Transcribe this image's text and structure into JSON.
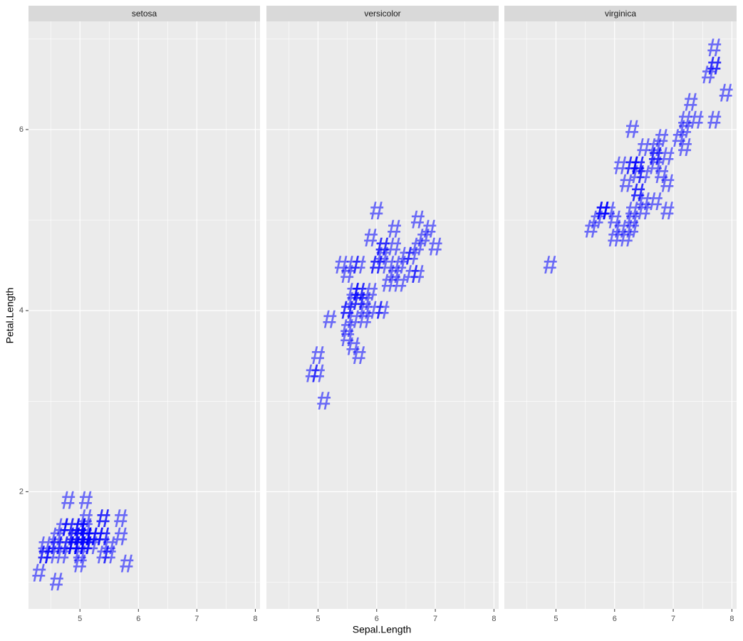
{
  "xlabel": "Sepal.Length",
  "ylabel": "Petal.Length",
  "marker": "#",
  "chart_data": [
    {
      "type": "scatter",
      "title": "setosa",
      "color": "#0000ff",
      "alpha": 0.55,
      "x": [
        5.1,
        4.9,
        4.7,
        4.6,
        5.0,
        5.4,
        4.6,
        5.0,
        4.4,
        4.9,
        5.4,
        4.8,
        4.8,
        4.3,
        5.8,
        5.7,
        5.4,
        5.1,
        5.7,
        5.1,
        5.4,
        5.1,
        4.6,
        5.1,
        4.8,
        5.0,
        5.0,
        5.2,
        5.2,
        4.7,
        4.8,
        5.4,
        5.2,
        5.5,
        4.9,
        5.0,
        5.5,
        4.9,
        4.4,
        5.1,
        5.0,
        4.5,
        4.4,
        5.0,
        5.1,
        4.8,
        5.1,
        4.6,
        5.3,
        5.0
      ],
      "y": [
        1.4,
        1.4,
        1.3,
        1.5,
        1.4,
        1.7,
        1.4,
        1.5,
        1.4,
        1.5,
        1.5,
        1.6,
        1.4,
        1.1,
        1.2,
        1.5,
        1.3,
        1.4,
        1.7,
        1.5,
        1.7,
        1.5,
        1.0,
        1.7,
        1.9,
        1.6,
        1.6,
        1.5,
        1.4,
        1.6,
        1.6,
        1.5,
        1.5,
        1.4,
        1.5,
        1.2,
        1.3,
        1.4,
        1.3,
        1.5,
        1.3,
        1.3,
        1.3,
        1.6,
        1.9,
        1.4,
        1.6,
        1.4,
        1.5,
        1.4
      ],
      "xlim": [
        4.12,
        8.08
      ],
      "ylim": [
        0.705,
        7.195
      ],
      "xticks": [
        5,
        6,
        7,
        8
      ],
      "yticks": [
        2,
        4,
        6
      ],
      "xminor": [
        4.5,
        5.5,
        6.5,
        7.5
      ],
      "yminor": [
        1,
        3,
        5,
        7
      ],
      "grid": true
    },
    {
      "type": "scatter",
      "title": "versicolor",
      "color": "#0000ff",
      "alpha": 0.55,
      "x": [
        7.0,
        6.4,
        6.9,
        5.5,
        6.5,
        5.7,
        6.3,
        4.9,
        6.6,
        5.2,
        5.0,
        5.9,
        6.0,
        6.1,
        5.6,
        6.7,
        5.6,
        5.8,
        6.2,
        5.6,
        5.9,
        6.1,
        6.3,
        6.1,
        6.4,
        6.6,
        6.8,
        6.7,
        6.0,
        5.7,
        5.5,
        5.5,
        5.8,
        6.0,
        5.4,
        6.0,
        6.7,
        6.3,
        5.6,
        5.5,
        5.5,
        6.1,
        5.8,
        5.0,
        5.6,
        5.7,
        5.7,
        6.2,
        5.1,
        5.7
      ],
      "y": [
        4.7,
        4.5,
        4.9,
        4.0,
        4.6,
        4.5,
        4.7,
        3.3,
        4.6,
        3.9,
        3.5,
        4.2,
        4.0,
        4.7,
        3.6,
        4.4,
        4.5,
        4.1,
        4.5,
        3.9,
        4.8,
        4.0,
        4.9,
        4.7,
        4.3,
        4.4,
        4.8,
        5.0,
        4.5,
        3.5,
        3.8,
        3.7,
        3.9,
        5.1,
        4.5,
        4.5,
        4.7,
        4.4,
        4.1,
        4.0,
        4.4,
        4.6,
        4.0,
        3.3,
        4.2,
        4.2,
        4.2,
        4.3,
        3.0,
        4.1
      ],
      "xlim": [
        4.12,
        8.08
      ],
      "ylim": [
        0.705,
        7.195
      ],
      "xticks": [
        5,
        6,
        7,
        8
      ],
      "yticks": [
        2,
        4,
        6
      ],
      "xminor": [
        4.5,
        5.5,
        6.5,
        7.5
      ],
      "yminor": [
        1,
        3,
        5,
        7
      ],
      "grid": true
    },
    {
      "type": "scatter",
      "title": "virginica",
      "color": "#0000ff",
      "alpha": 0.55,
      "x": [
        6.3,
        5.8,
        7.1,
        6.3,
        6.5,
        7.6,
        4.9,
        7.3,
        6.7,
        7.2,
        6.5,
        6.4,
        6.8,
        5.7,
        5.8,
        6.4,
        6.5,
        7.7,
        7.7,
        6.0,
        6.9,
        5.6,
        7.7,
        6.3,
        6.7,
        7.2,
        6.2,
        6.1,
        6.4,
        7.2,
        7.4,
        7.9,
        6.4,
        6.3,
        6.1,
        7.7,
        6.3,
        6.4,
        6.0,
        6.9,
        6.7,
        6.9,
        5.8,
        6.8,
        6.7,
        6.7,
        6.3,
        6.5,
        6.2,
        5.9
      ],
      "y": [
        6.0,
        5.1,
        5.9,
        5.6,
        5.8,
        6.6,
        4.5,
        6.3,
        5.8,
        6.1,
        5.1,
        5.3,
        5.5,
        5.0,
        5.1,
        5.3,
        5.5,
        6.7,
        6.9,
        5.0,
        5.7,
        4.9,
        6.7,
        4.9,
        5.7,
        6.0,
        4.8,
        4.9,
        5.6,
        5.8,
        6.1,
        6.4,
        5.6,
        5.1,
        5.6,
        6.1,
        5.6,
        5.5,
        4.8,
        5.4,
        5.6,
        5.1,
        5.1,
        5.9,
        5.7,
        5.2,
        5.0,
        5.2,
        5.4,
        5.1
      ],
      "xlim": [
        4.12,
        8.08
      ],
      "ylim": [
        0.705,
        7.195
      ],
      "xticks": [
        5,
        6,
        7,
        8
      ],
      "yticks": [
        2,
        4,
        6
      ],
      "xminor": [
        4.5,
        5.5,
        6.5,
        7.5
      ],
      "yminor": [
        1,
        3,
        5,
        7
      ],
      "grid": true
    }
  ]
}
